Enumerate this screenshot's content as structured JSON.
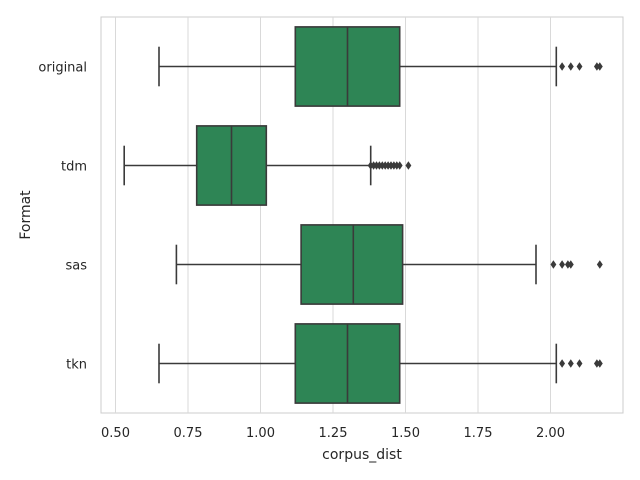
{
  "chart_data": {
    "type": "boxplot",
    "orientation": "horizontal",
    "title": "",
    "xlabel": "corpus_dist",
    "ylabel": "Format",
    "xlim": [
      0.45,
      2.25
    ],
    "xticks": [
      0.5,
      0.75,
      1.0,
      1.25,
      1.5,
      1.75,
      2.0
    ],
    "xtick_labels": [
      "0.50",
      "0.75",
      "1.00",
      "1.25",
      "1.50",
      "1.75",
      "2.00"
    ],
    "grid": "vertical",
    "box_color": "#2e8555",
    "line_color": "#3a3a3a",
    "categories": [
      "original",
      "tdm",
      "sas",
      "tkn"
    ],
    "boxes": [
      {
        "category": "original",
        "whisker_low": 0.65,
        "q1": 1.12,
        "median": 1.3,
        "q3": 1.48,
        "whisker_high": 2.02,
        "outliers": [
          2.04,
          2.07,
          2.1,
          2.16,
          2.17
        ]
      },
      {
        "category": "tdm",
        "whisker_low": 0.53,
        "q1": 0.78,
        "median": 0.9,
        "q3": 1.02,
        "whisker_high": 1.38,
        "outliers": [
          1.38,
          1.39,
          1.4,
          1.41,
          1.42,
          1.43,
          1.44,
          1.45,
          1.46,
          1.47,
          1.48,
          1.51
        ]
      },
      {
        "category": "sas",
        "whisker_low": 0.71,
        "q1": 1.14,
        "median": 1.32,
        "q3": 1.49,
        "whisker_high": 1.95,
        "outliers": [
          2.01,
          2.04,
          2.06,
          2.07,
          2.17
        ]
      },
      {
        "category": "tkn",
        "whisker_low": 0.65,
        "q1": 1.12,
        "median": 1.3,
        "q3": 1.48,
        "whisker_high": 2.02,
        "outliers": [
          2.04,
          2.07,
          2.1,
          2.16,
          2.17
        ]
      }
    ]
  }
}
